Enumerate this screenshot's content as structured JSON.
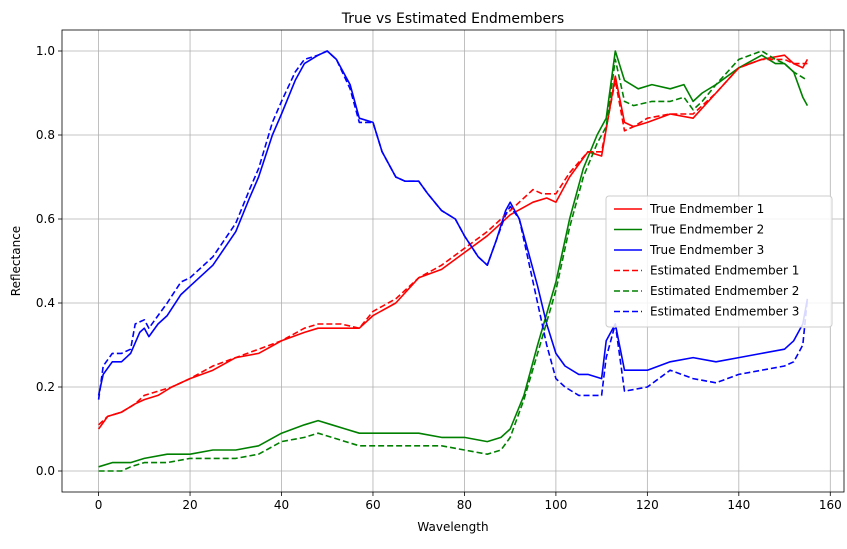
{
  "chart_data": {
    "type": "line",
    "title": "True vs Estimated Endmembers",
    "xlabel": "Wavelength",
    "ylabel": "Reflectance",
    "xlim": [
      -8,
      163
    ],
    "ylim": [
      -0.05,
      1.05
    ],
    "xticks": [
      0,
      20,
      40,
      60,
      80,
      100,
      120,
      140,
      160
    ],
    "yticks": [
      0.0,
      0.2,
      0.4,
      0.6,
      0.8,
      1.0
    ],
    "grid": true,
    "legend_position": "center-right",
    "series": [
      {
        "name": "True Endmember 1",
        "color": "#ff0000",
        "dash": "solid",
        "x": [
          0,
          2,
          5,
          8,
          10,
          13,
          16,
          20,
          25,
          30,
          35,
          40,
          45,
          48,
          50,
          53,
          57,
          60,
          65,
          70,
          75,
          80,
          85,
          90,
          95,
          98,
          100,
          103,
          107,
          110,
          113,
          115,
          117,
          120,
          125,
          130,
          135,
          140,
          145,
          150,
          152,
          154,
          155
        ],
        "y": [
          0.1,
          0.13,
          0.14,
          0.16,
          0.17,
          0.18,
          0.2,
          0.22,
          0.24,
          0.27,
          0.28,
          0.31,
          0.33,
          0.34,
          0.34,
          0.34,
          0.34,
          0.37,
          0.4,
          0.46,
          0.48,
          0.52,
          0.56,
          0.61,
          0.64,
          0.65,
          0.64,
          0.7,
          0.76,
          0.75,
          0.94,
          0.83,
          0.82,
          0.83,
          0.85,
          0.84,
          0.9,
          0.96,
          0.98,
          0.99,
          0.97,
          0.96,
          0.98
        ]
      },
      {
        "name": "True Endmember 2",
        "color": "#008000",
        "dash": "solid",
        "x": [
          0,
          3,
          7,
          10,
          15,
          20,
          25,
          30,
          35,
          40,
          45,
          48,
          51,
          54,
          57,
          60,
          65,
          70,
          75,
          80,
          85,
          88,
          90,
          93,
          96,
          100,
          103,
          106,
          109,
          111,
          113,
          115,
          118,
          121,
          125,
          128,
          130,
          132,
          135,
          140,
          145,
          148,
          150,
          152,
          154,
          155
        ],
        "y": [
          0.01,
          0.02,
          0.02,
          0.03,
          0.04,
          0.04,
          0.05,
          0.05,
          0.06,
          0.09,
          0.11,
          0.12,
          0.11,
          0.1,
          0.09,
          0.09,
          0.09,
          0.09,
          0.08,
          0.08,
          0.07,
          0.08,
          0.1,
          0.18,
          0.3,
          0.45,
          0.6,
          0.72,
          0.8,
          0.84,
          1.0,
          0.93,
          0.91,
          0.92,
          0.91,
          0.92,
          0.88,
          0.9,
          0.92,
          0.96,
          0.99,
          0.97,
          0.97,
          0.95,
          0.89,
          0.87
        ]
      },
      {
        "name": "True Endmember 3",
        "color": "#0000ff",
        "dash": "solid",
        "x": [
          0,
          1,
          3,
          5,
          7,
          9,
          10,
          11,
          13,
          15,
          18,
          20,
          25,
          30,
          33,
          35,
          38,
          40,
          43,
          45,
          48,
          50,
          52,
          55,
          57,
          60,
          62,
          65,
          67,
          70,
          72,
          75,
          78,
          80,
          83,
          85,
          87,
          89,
          90,
          92,
          94,
          96,
          98,
          100,
          102,
          105,
          107,
          110,
          111,
          113,
          115,
          120,
          125,
          130,
          135,
          140,
          145,
          150,
          152,
          154,
          155
        ],
        "y": [
          0.18,
          0.23,
          0.26,
          0.26,
          0.28,
          0.33,
          0.34,
          0.32,
          0.35,
          0.37,
          0.42,
          0.44,
          0.49,
          0.57,
          0.65,
          0.7,
          0.8,
          0.85,
          0.93,
          0.97,
          0.99,
          1.0,
          0.98,
          0.92,
          0.84,
          0.83,
          0.76,
          0.7,
          0.69,
          0.69,
          0.66,
          0.62,
          0.6,
          0.56,
          0.51,
          0.49,
          0.55,
          0.62,
          0.64,
          0.6,
          0.52,
          0.44,
          0.35,
          0.28,
          0.25,
          0.23,
          0.23,
          0.22,
          0.31,
          0.35,
          0.24,
          0.24,
          0.26,
          0.27,
          0.26,
          0.27,
          0.28,
          0.29,
          0.31,
          0.35,
          0.41
        ]
      },
      {
        "name": "Estimated Endmember 1",
        "color": "#ff0000",
        "dash": "dashed",
        "x": [
          0,
          2,
          5,
          8,
          10,
          13,
          16,
          20,
          25,
          30,
          35,
          40,
          45,
          48,
          50,
          53,
          57,
          60,
          65,
          70,
          75,
          80,
          85,
          90,
          95,
          97,
          100,
          103,
          107,
          110,
          113,
          115,
          117,
          120,
          125,
          130,
          135,
          140,
          145,
          150,
          152,
          155
        ],
        "y": [
          0.11,
          0.13,
          0.14,
          0.16,
          0.18,
          0.19,
          0.2,
          0.22,
          0.25,
          0.27,
          0.29,
          0.31,
          0.34,
          0.35,
          0.35,
          0.35,
          0.34,
          0.38,
          0.41,
          0.46,
          0.49,
          0.53,
          0.57,
          0.62,
          0.67,
          0.66,
          0.66,
          0.71,
          0.76,
          0.76,
          0.93,
          0.81,
          0.82,
          0.84,
          0.85,
          0.85,
          0.9,
          0.96,
          0.98,
          0.98,
          0.97,
          0.97
        ]
      },
      {
        "name": "Estimated Endmember 2",
        "color": "#008000",
        "dash": "dashed",
        "x": [
          0,
          3,
          5,
          7,
          10,
          15,
          20,
          25,
          30,
          35,
          40,
          45,
          48,
          51,
          54,
          57,
          60,
          65,
          70,
          75,
          80,
          85,
          88,
          90,
          93,
          96,
          100,
          103,
          106,
          109,
          111,
          113,
          115,
          117,
          121,
          125,
          128,
          130,
          132,
          135,
          140,
          145,
          148,
          150,
          152,
          155
        ],
        "y": [
          0.0,
          0.0,
          0.0,
          0.01,
          0.02,
          0.02,
          0.03,
          0.03,
          0.03,
          0.04,
          0.07,
          0.08,
          0.09,
          0.08,
          0.07,
          0.06,
          0.06,
          0.06,
          0.06,
          0.06,
          0.05,
          0.04,
          0.05,
          0.08,
          0.17,
          0.28,
          0.43,
          0.58,
          0.7,
          0.78,
          0.82,
          0.98,
          0.88,
          0.87,
          0.88,
          0.88,
          0.89,
          0.86,
          0.88,
          0.92,
          0.98,
          1.0,
          0.98,
          0.97,
          0.95,
          0.93
        ]
      },
      {
        "name": "Estimated Endmember 3",
        "color": "#0000ff",
        "dash": "dashed",
        "x": [
          0,
          1,
          3,
          5,
          7,
          8,
          10,
          11,
          13,
          15,
          18,
          20,
          25,
          30,
          33,
          35,
          38,
          40,
          43,
          45,
          48,
          50,
          52,
          55,
          57,
          60,
          62,
          65,
          67,
          70,
          72,
          75,
          78,
          80,
          83,
          85,
          87,
          89,
          90,
          92,
          94,
          96,
          98,
          100,
          102,
          105,
          107,
          110,
          111,
          113,
          115,
          120,
          125,
          130,
          135,
          140,
          145,
          150,
          152,
          154,
          155
        ],
        "y": [
          0.17,
          0.25,
          0.28,
          0.28,
          0.29,
          0.35,
          0.36,
          0.34,
          0.37,
          0.4,
          0.45,
          0.46,
          0.51,
          0.59,
          0.67,
          0.72,
          0.83,
          0.88,
          0.95,
          0.98,
          0.99,
          1.0,
          0.98,
          0.91,
          0.83,
          0.83,
          0.76,
          0.7,
          0.69,
          0.69,
          0.66,
          0.62,
          0.6,
          0.56,
          0.51,
          0.49,
          0.55,
          0.61,
          0.63,
          0.6,
          0.5,
          0.4,
          0.3,
          0.22,
          0.2,
          0.18,
          0.18,
          0.18,
          0.27,
          0.35,
          0.19,
          0.2,
          0.24,
          0.22,
          0.21,
          0.23,
          0.24,
          0.25,
          0.26,
          0.3,
          0.41
        ]
      }
    ]
  }
}
